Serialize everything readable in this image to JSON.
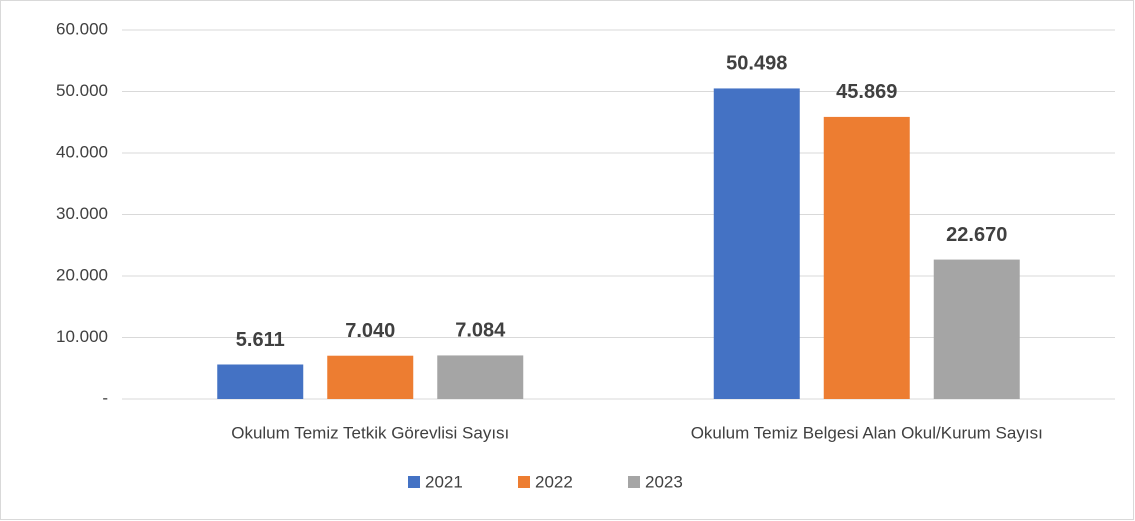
{
  "chart_data": {
    "type": "bar",
    "categories": [
      "Okulum Temiz Tetkik Görevlisi Sayısı",
      "Okulum Temiz Belgesi Alan Okul/Kurum Sayısı"
    ],
    "series": [
      {
        "name": "2021",
        "color": "#4472c4",
        "values": [
          5611,
          50498
        ],
        "value_labels": [
          "5.611",
          "50.498"
        ]
      },
      {
        "name": "2022",
        "color": "#ed7d31",
        "values": [
          7040,
          45869
        ],
        "value_labels": [
          "7.040",
          "45.869"
        ]
      },
      {
        "name": "2023",
        "color": "#a5a5a5",
        "values": [
          7084,
          22670
        ],
        "value_labels": [
          "7.084",
          "22.670"
        ]
      }
    ],
    "ylim": [
      0,
      60000
    ],
    "yticks": [
      {
        "value": 0,
        "label": "-"
      },
      {
        "value": 10000,
        "label": "10.000"
      },
      {
        "value": 20000,
        "label": "20.000"
      },
      {
        "value": 30000,
        "label": "30.000"
      },
      {
        "value": 40000,
        "label": "40.000"
      },
      {
        "value": 50000,
        "label": "50.000"
      },
      {
        "value": 60000,
        "label": "60.000"
      }
    ],
    "grid": true,
    "legend": "bottom"
  }
}
